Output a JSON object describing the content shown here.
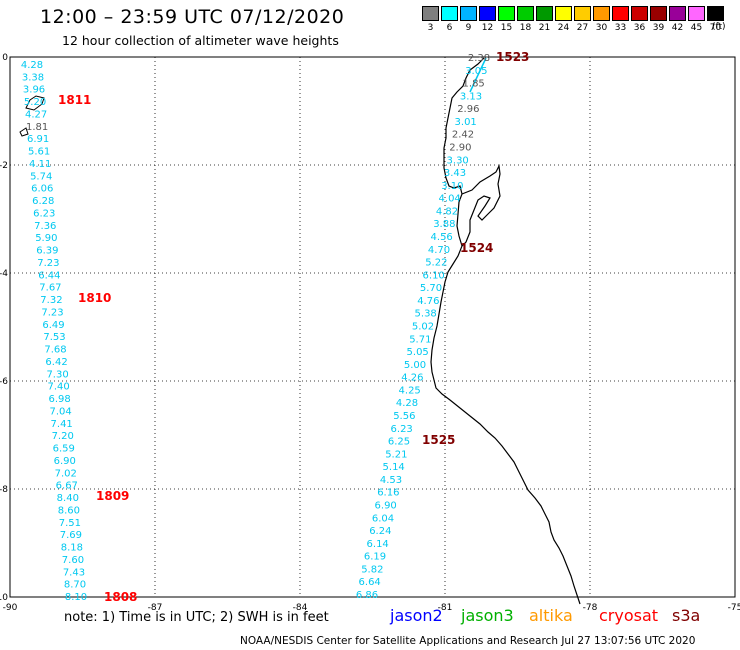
{
  "header": {
    "title": "12:00 – 23:59 UTC 07/12/2020",
    "subtitle": "12 hour collection of altimeter wave heights"
  },
  "scale": {
    "unit": "(ft)",
    "swatches": [
      {
        "color": "#7f7f7f",
        "label": "3"
      },
      {
        "color": "#00ffff",
        "label": "6"
      },
      {
        "color": "#00b4ff",
        "label": "9"
      },
      {
        "color": "#0000ff",
        "label": "12"
      },
      {
        "color": "#00ff00",
        "label": "15"
      },
      {
        "color": "#00cc00",
        "label": "18"
      },
      {
        "color": "#009900",
        "label": "21"
      },
      {
        "color": "#ffff00",
        "label": "24"
      },
      {
        "color": "#ffcc00",
        "label": "27"
      },
      {
        "color": "#ff9900",
        "label": "30"
      },
      {
        "color": "#ff0000",
        "label": "33"
      },
      {
        "color": "#cc0000",
        "label": "36"
      },
      {
        "color": "#990000",
        "label": "39"
      },
      {
        "color": "#990099",
        "label": "42"
      },
      {
        "color": "#ff66ff",
        "label": "45"
      },
      {
        "color": "#000000",
        "label": "70"
      }
    ]
  },
  "axes": {
    "lon_ticks": [
      "-90",
      "-87",
      "-84",
      "-81",
      "-78",
      "-75"
    ],
    "lat_ticks": [
      "0",
      "-2",
      "-4",
      "-6",
      "-8",
      "-10"
    ]
  },
  "tracks": [
    {
      "name": "west",
      "color": "#00c8f0",
      "values": [
        "4.28",
        "3.38",
        "3.96",
        "5.20",
        "4.27",
        "1.81",
        "6.91",
        "5.61",
        "4.11",
        "5.74",
        "6.06",
        "6.28",
        "6.23",
        "7.36",
        "5.90",
        "6.39",
        "7.23",
        "6.44",
        "7.67",
        "7.32",
        "7.23",
        "6.49",
        "7.53",
        "7.68",
        "6.42",
        "7.30",
        "7.40",
        "6.98",
        "7.04",
        "7.41",
        "7.20",
        "6.59",
        "6.90",
        "7.02",
        "6.67",
        "8.40",
        "8.60",
        "7.51",
        "7.69",
        "8.18",
        "7.60",
        "7.43",
        "8.70",
        "8.10"
      ],
      "gray": [
        "1.81"
      ]
    },
    {
      "name": "east",
      "color": "#00c8f0",
      "values": [
        "2.38",
        "3.05",
        "1.85",
        "3.13",
        "2.96",
        "3.01",
        "2.42",
        "2.90",
        "3.30",
        "3.43",
        "3.10",
        "4.04",
        "4.82",
        "3.88",
        "4.56",
        "4.70",
        "5.22",
        "6.10",
        "5.70",
        "4.76",
        "5.38",
        "5.02",
        "5.71",
        "5.05",
        "5.00",
        "4.26",
        "4.25",
        "4.28",
        "5.56",
        "6.23",
        "6.25",
        "5.21",
        "5.14",
        "4.53",
        "6.16",
        "6.90",
        "6.04",
        "6.24",
        "6.14",
        "6.19",
        "5.82",
        "6.64",
        "6.86"
      ],
      "gray": [
        "2.38",
        "1.85",
        "2.96",
        "2.42",
        "2.90"
      ]
    }
  ],
  "time_labels": [
    {
      "text": "1811",
      "color": "#ff0000"
    },
    {
      "text": "1810",
      "color": "#ff0000"
    },
    {
      "text": "1809",
      "color": "#ff0000"
    },
    {
      "text": "1808",
      "color": "#ff0000"
    },
    {
      "text": "1523",
      "color": "#800000"
    },
    {
      "text": "1524",
      "color": "#800000"
    },
    {
      "text": "1525",
      "color": "#800000"
    }
  ],
  "footer": {
    "note": "note:  1) Time is in UTC;  2) SWH is in feet",
    "satellites": [
      {
        "name": "jason2",
        "color": "#0000ff"
      },
      {
        "name": "jason3",
        "color": "#00b000"
      },
      {
        "name": "altika",
        "color": "#ff9900"
      },
      {
        "name": "cryosat",
        "color": "#ff0000"
      },
      {
        "name": "s3a",
        "color": "#800000"
      }
    ],
    "credit": "NOAA/NESDIS Center for Satellite Applications and Research     Jul 27 13:07:56 UTC 2020"
  }
}
